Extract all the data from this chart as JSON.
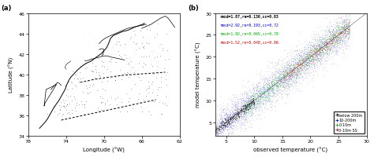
{
  "panel_a": {
    "label": "(a)",
    "xlim_neg": [
      -78,
      -62
    ],
    "ylim": [
      34,
      46
    ],
    "xlabel": "Longitude (°W)",
    "ylabel": "Latitude (°N)",
    "xtick_vals": [
      -78,
      -74,
      -70,
      -66,
      -62
    ],
    "xtick_labels": [
      "78",
      "74",
      "70",
      "66",
      "62"
    ],
    "yticks": [
      34,
      36,
      38,
      40,
      42,
      44,
      46
    ]
  },
  "panel_b": {
    "label": "(b)",
    "xlim": [
      3,
      30
    ],
    "ylim": [
      2,
      30
    ],
    "xlabel": "observed temperature (°C)",
    "ylabel": "model temperature (°C)",
    "xticks": [
      5,
      10,
      15,
      20,
      25,
      30
    ],
    "yticks": [
      5,
      10,
      15,
      20,
      25,
      30
    ],
    "stats": [
      {
        "text": "rmsd=1.87,re=0.130,cc=0.83",
        "color": "#000000"
      },
      {
        "text": "rmsd=2.92,re=0.193,cc=0.72",
        "color": "#0000cc"
      },
      {
        "text": "rmsd=1.92,re=0.065,cc=0.79",
        "color": "#00aa00"
      },
      {
        "text": "rmsd=1.52,re=0.048,cc=0.86",
        "color": "#cc0000"
      }
    ],
    "legend": [
      {
        "label": "below 200m",
        "color": "#000000"
      },
      {
        "label": "10-200m",
        "color": "#0000cc"
      },
      {
        "label": "0-10m",
        "color": "#00aa00"
      },
      {
        "label": "0-10m SS",
        "color": "#cc0000"
      }
    ]
  },
  "bg_color": "#ffffff",
  "coastline": {
    "main_lon": [
      -76.8,
      -76.5,
      -76.2,
      -75.9,
      -75.6,
      -75.3,
      -75.0,
      -74.7,
      -74.4,
      -74.1,
      -73.9,
      -73.7,
      -73.5,
      -73.2,
      -72.8,
      -72.3,
      -71.8,
      -71.3,
      -70.9,
      -70.6,
      -70.3,
      -70.1,
      -69.9,
      -69.7,
      -69.5,
      -69.3,
      -69.0,
      -68.5,
      -68.0,
      -67.5,
      -67.0,
      -66.8,
      -66.5,
      -66.2,
      -65.9,
      -65.7
    ],
    "main_lat": [
      34.7,
      35.0,
      35.3,
      35.7,
      36.2,
      36.7,
      37.1,
      37.5,
      38.0,
      38.5,
      39.0,
      39.4,
      39.7,
      40.0,
      40.4,
      40.8,
      41.1,
      41.3,
      41.6,
      41.8,
      42.0,
      42.2,
      42.4,
      42.6,
      43.0,
      43.5,
      43.8,
      44.0,
      44.2,
      44.3,
      44.5,
      44.6,
      44.7,
      44.8,
      44.9,
      45.0
    ],
    "delaware_lon": [
      -75.6,
      -75.3,
      -75.1,
      -74.9,
      -74.7,
      -74.5
    ],
    "delaware_lat": [
      38.5,
      38.8,
      39.0,
      39.2,
      39.1,
      38.9
    ],
    "chesapeake_lon": [
      -76.3,
      -76.2,
      -76.0,
      -75.8,
      -75.6,
      -75.4,
      -75.2,
      -75.0,
      -76.1,
      -76.3
    ],
    "chesapeake_lat": [
      36.9,
      37.2,
      37.5,
      37.8,
      38.1,
      38.4,
      38.7,
      39.0,
      38.5,
      36.9
    ],
    "islands_lon": [
      -72.0,
      -71.5,
      -71.2,
      -70.8,
      -70.4,
      -70.0,
      -69.6,
      -69.3,
      -68.8,
      -68.3,
      -67.8
    ],
    "islands_lat": [
      41.3,
      41.4,
      41.5,
      41.6,
      41.7,
      41.8,
      41.8,
      41.7,
      41.6,
      41.5,
      41.4
    ],
    "nova_lon": [
      -66.0,
      -65.5,
      -65.0,
      -64.5,
      -64.0,
      -63.5,
      -63.2,
      -62.8,
      -62.5
    ],
    "nova_lat": [
      44.5,
      44.7,
      44.9,
      45.2,
      45.5,
      45.7,
      45.5,
      45.0,
      44.6
    ],
    "shelf_lon1": [
      -75.0,
      -73.5,
      -72.0,
      -70.5,
      -69.0,
      -67.5,
      -66.0,
      -64.5,
      -63.5
    ],
    "shelf_lat1": [
      35.5,
      36.0,
      36.5,
      37.0,
      37.5,
      38.0,
      38.5,
      39.0,
      39.3
    ],
    "shelf_lon2": [
      -74.5,
      -73.0,
      -71.5,
      -70.0,
      -68.5,
      -67.0,
      -65.5,
      -64.0,
      -63.0
    ],
    "shelf_lat2": [
      38.0,
      38.5,
      39.0,
      39.5,
      39.8,
      40.0,
      40.2,
      40.4,
      40.5
    ],
    "dash_lon1": [
      -74.5,
      -73.0,
      -71.5,
      -70.0,
      -68.5,
      -67.0,
      -65.5,
      -64.5
    ],
    "dash_lat1": [
      35.5,
      35.8,
      36.1,
      36.4,
      36.7,
      37.0,
      37.3,
      37.5
    ],
    "dash_lon2": [
      -72.5,
      -71.0,
      -69.5,
      -68.0,
      -66.5,
      -65.0,
      -63.5
    ],
    "dash_lat2": [
      39.2,
      39.5,
      39.7,
      39.9,
      40.0,
      40.1,
      40.2
    ]
  }
}
